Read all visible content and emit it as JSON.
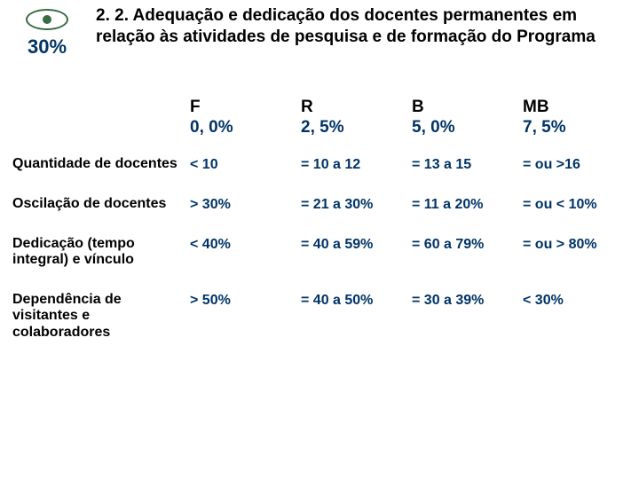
{
  "colors": {
    "text_primary": "#000000",
    "text_accent": "#003366",
    "icon": "#3a6b44",
    "background": "#ffffff"
  },
  "typography": {
    "font_family": "Verdana, Arial, sans-serif",
    "title_fontsize": 19,
    "header_fontsize": 19,
    "body_fontsize": 16,
    "badge_fontsize": 22,
    "weight": "bold"
  },
  "badge": {
    "percent": "30%"
  },
  "title": "2. 2. Adequação e dedicação dos docentes permanentes em relação às atividades de pesquisa e de formação do Programa",
  "table": {
    "type": "table",
    "columns": [
      {
        "grade": "F",
        "pct": "0, 0%"
      },
      {
        "grade": "R",
        "pct": "2, 5%"
      },
      {
        "grade": "B",
        "pct": "5, 0%"
      },
      {
        "grade": "MB",
        "pct": "7, 5%"
      }
    ],
    "rows": [
      {
        "label": "Quantidade de docentes",
        "cells": [
          "< 10",
          "= 10 a 12",
          "= 13 a 15",
          "= ou >16"
        ]
      },
      {
        "label": "Oscilação de docentes",
        "cells": [
          "> 30%",
          "= 21 a 30%",
          "= 11 a 20%",
          "= ou < 10%"
        ]
      },
      {
        "label": "Dedicação (tempo integral) e vínculo",
        "cells": [
          "< 40%",
          "= 40 a 59%",
          "= 60 a 79%",
          "= ou > 80%"
        ]
      },
      {
        "label": "Dependência de visitantes e colaboradores",
        "cells": [
          "> 50%",
          "= 40 a 50%",
          "= 30 a 39%",
          "< 30%"
        ]
      }
    ]
  }
}
